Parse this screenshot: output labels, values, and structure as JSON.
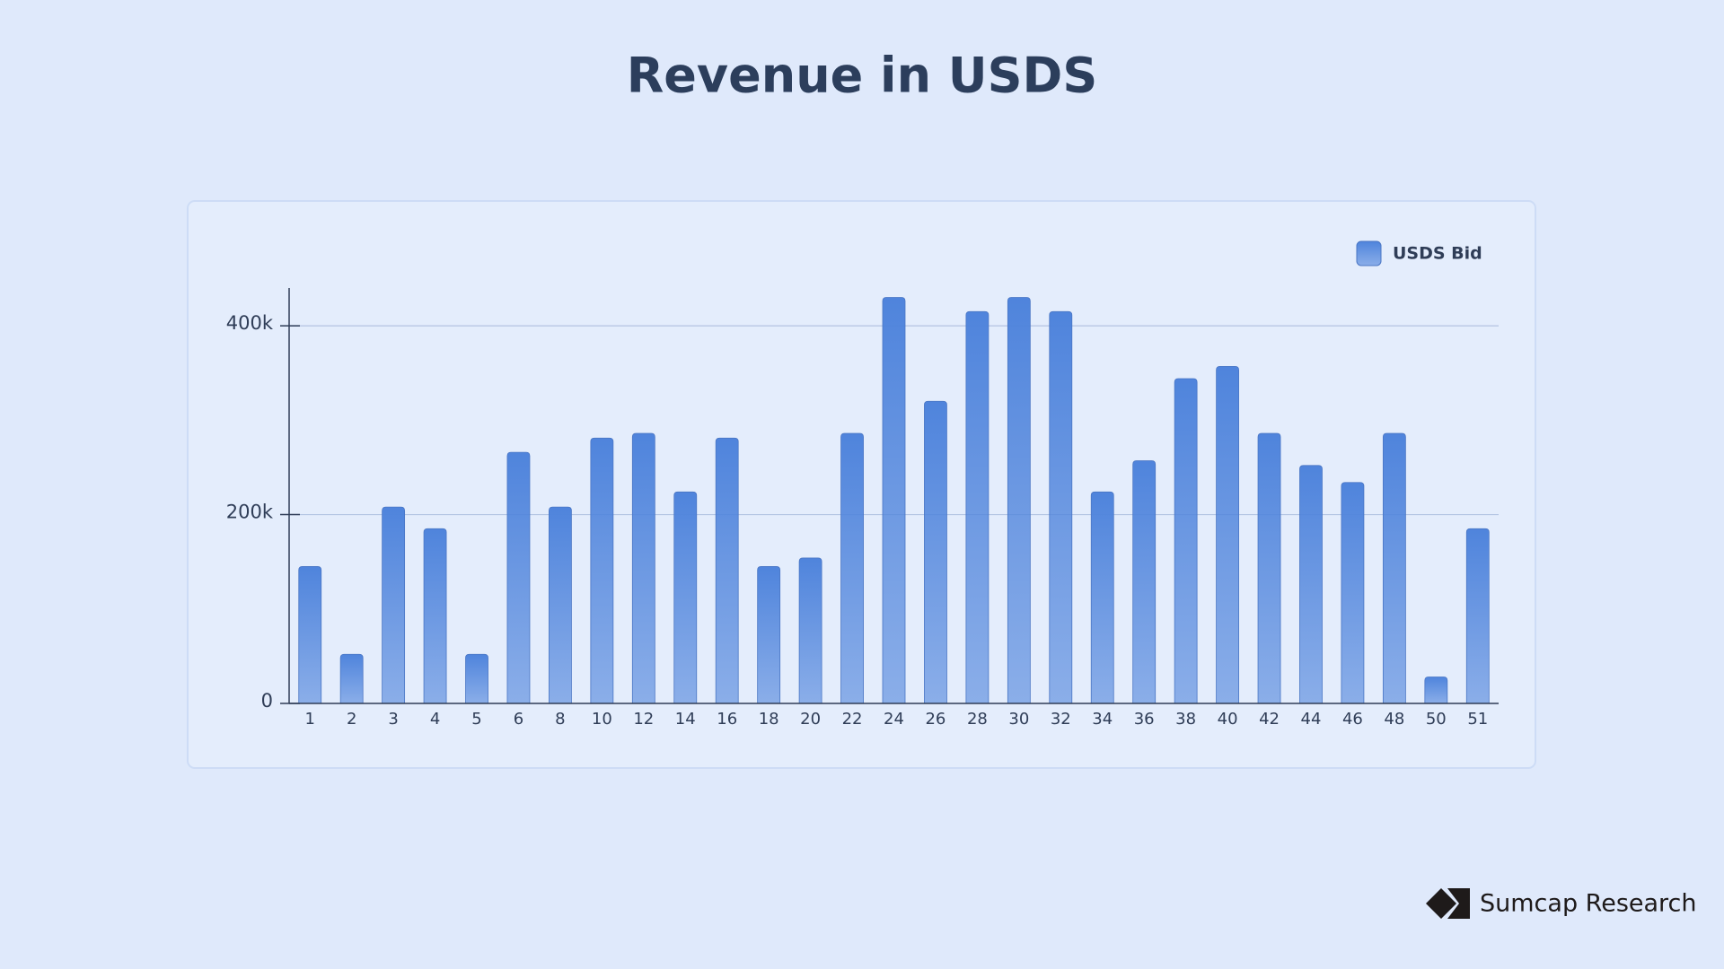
{
  "chart_data": {
    "type": "bar",
    "title": "Revenue in USDS",
    "categories": [
      "1",
      "2",
      "3",
      "4",
      "5",
      "6",
      "8",
      "10",
      "12",
      "14",
      "16",
      "18",
      "20",
      "22",
      "24",
      "26",
      "28",
      "30",
      "32",
      "34",
      "36",
      "38",
      "40",
      "42",
      "44",
      "46",
      "48",
      "50",
      "51"
    ],
    "series": [
      {
        "name": "USDS Bid",
        "color": "#4f84dc",
        "values": [
          145000,
          52000,
          208000,
          185000,
          52000,
          266000,
          208000,
          281000,
          286000,
          224000,
          281000,
          145000,
          154000,
          286000,
          430000,
          320000,
          415000,
          430000,
          415000,
          224000,
          257000,
          344000,
          357000,
          286000,
          252000,
          234000,
          286000,
          28000,
          185000
        ]
      }
    ],
    "ylim": [
      0,
      440000
    ],
    "yticks": [
      0,
      {
        "value": 200000,
        "label": "200k"
      },
      {
        "value": 400000,
        "label": "400k"
      }
    ],
    "grid": true,
    "legend": "top-right"
  },
  "branding": {
    "name": "Sumcap Research"
  }
}
